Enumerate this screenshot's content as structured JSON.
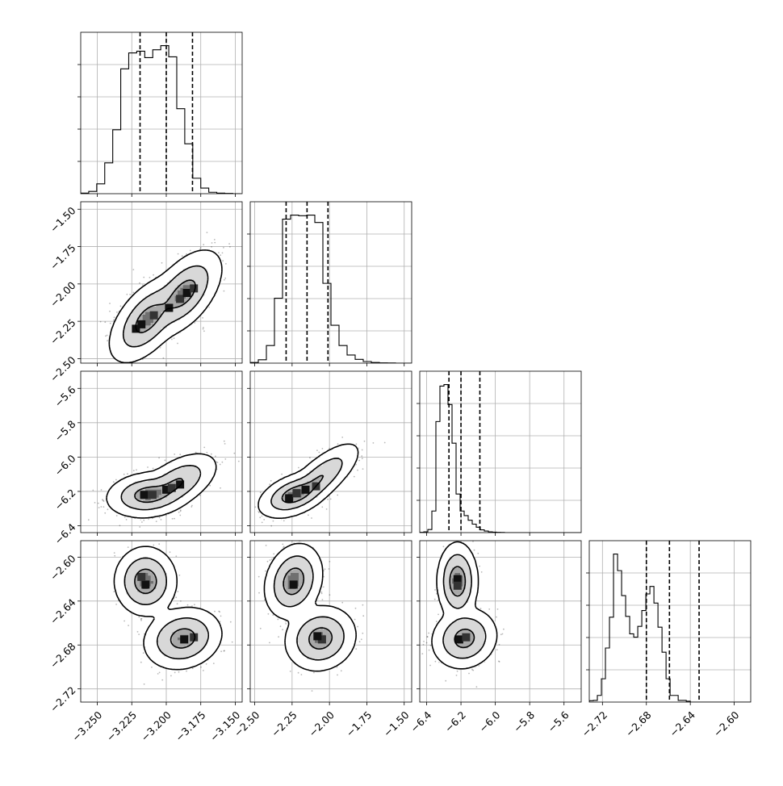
{
  "chart_data": {
    "type": "corner",
    "colors": {
      "ink": "#000000",
      "grid": "#b0b0b0",
      "background": "#ffffff"
    },
    "parameters": [
      {
        "index": 0,
        "range": [
          -3.262,
          -3.145
        ],
        "ticks": [
          -3.25,
          -3.225,
          -3.2,
          -3.175,
          -3.15
        ],
        "tick_labels": [
          "−3.250",
          "−3.225",
          "−3.200",
          "−3.175",
          "−3.150"
        ],
        "quantiles": [
          -3.219,
          -3.2,
          -3.181
        ],
        "histogram": {
          "edges_start": -3.262,
          "bin_width": 0.0058,
          "counts": [
            2,
            8,
            35,
            110,
            228,
            445,
            502,
            508,
            485,
            513,
            528,
            488,
            303,
            178,
            55,
            20,
            5,
            2,
            1,
            0
          ]
        }
      },
      {
        "index": 1,
        "range": [
          -2.53,
          -1.45
        ],
        "ticks": [
          -2.5,
          -2.25,
          -2.0,
          -1.75,
          -1.5
        ],
        "tick_labels": [
          "−2.50",
          "−2.25",
          "−2.00",
          "−1.75",
          "−1.50"
        ],
        "quantiles": [
          -2.29,
          -2.15,
          -2.01
        ],
        "histogram": {
          "edges_start": -2.53,
          "bin_width": 0.054,
          "counts": [
            5,
            25,
            130,
            480,
            1065,
            1095,
            1090,
            1095,
            1040,
            590,
            280,
            130,
            60,
            28,
            12,
            5,
            2,
            1,
            0,
            0
          ]
        }
      },
      {
        "index": 2,
        "range": [
          -6.44,
          -5.5
        ],
        "ticks": [
          -6.4,
          -6.2,
          -6.0,
          -5.8,
          -5.6
        ],
        "tick_labels": [
          "−6.4",
          "−6.2",
          "−6.0",
          "−5.8",
          "−5.6"
        ],
        "quantiles": [
          -6.27,
          -6.2,
          -6.09
        ],
        "histogram": {
          "edges_start": -6.44,
          "bin_width": 0.0235,
          "counts": [
            2,
            5,
            20,
            140,
            720,
            950,
            960,
            830,
            580,
            250,
            140,
            110,
            80,
            55,
            35,
            18,
            10,
            5,
            3,
            2,
            1,
            0,
            0,
            0,
            0,
            0,
            0,
            0,
            0,
            0,
            0,
            0,
            0,
            0,
            0,
            0,
            0,
            0,
            0,
            0
          ]
        }
      },
      {
        "index": 3,
        "range": [
          -2.732,
          -2.585
        ],
        "ticks": [
          -2.72,
          -2.68,
          -2.64,
          -2.6
        ],
        "tick_labels": [
          "−2.72",
          "−2.68",
          "−2.64",
          "−2.60"
        ],
        "quantiles": [
          -2.68,
          -2.659,
          -2.632
        ],
        "histogram": {
          "edges_start": -2.732,
          "bin_width": 0.00368,
          "counts": [
            8,
            10,
            40,
            140,
            325,
            510,
            890,
            790,
            640,
            515,
            410,
            390,
            455,
            550,
            650,
            695,
            595,
            450,
            300,
            140,
            40,
            40,
            10,
            10,
            5,
            0,
            0,
            0,
            0,
            0,
            0,
            0,
            0,
            0,
            0,
            0,
            0,
            0,
            0,
            0
          ]
        }
      }
    ],
    "pairs": [
      {
        "x": 0,
        "y": 1,
        "modes": [
          {
            "mean": [
              -3.214,
              -2.24
            ],
            "sd": [
              0.0095,
              0.1
            ],
            "rho": 0.55,
            "weight": 0.5
          },
          {
            "mean": [
              -3.187,
              -2.06
            ],
            "sd": [
              0.0095,
              0.1
            ],
            "rho": 0.55,
            "weight": 0.5
          }
        ],
        "dense_cells": [
          [
            -3.218,
            -2.27
          ],
          [
            -3.209,
            -2.21
          ],
          [
            -3.198,
            -2.16
          ],
          [
            -3.19,
            -2.1
          ],
          [
            -3.185,
            -2.06
          ],
          [
            -3.18,
            -2.03
          ],
          [
            -3.222,
            -2.3
          ]
        ]
      },
      {
        "x": 0,
        "y": 2,
        "modes": [
          {
            "mean": [
              -3.214,
              -6.22
            ],
            "sd": [
              0.01,
              0.045
            ],
            "rho": 0.15,
            "weight": 0.55
          },
          {
            "mean": [
              -3.192,
              -6.15
            ],
            "sd": [
              0.01,
              0.06
            ],
            "rho": 0.55,
            "weight": 0.45
          }
        ],
        "dense_cells": [
          [
            -3.216,
            -6.22
          ],
          [
            -3.21,
            -6.22
          ],
          [
            -3.2,
            -6.19
          ],
          [
            -3.196,
            -6.18
          ],
          [
            -3.19,
            -6.16
          ]
        ]
      },
      {
        "x": 1,
        "y": 2,
        "modes": [
          {
            "mean": [
              -2.24,
              -6.22
            ],
            "sd": [
              0.08,
              0.045
            ],
            "rho": 0.45,
            "weight": 0.55
          },
          {
            "mean": [
              -2.06,
              -6.12
            ],
            "sd": [
              0.09,
              0.07
            ],
            "rho": 0.75,
            "weight": 0.45
          }
        ],
        "dense_cells": [
          [
            -2.27,
            -6.24
          ],
          [
            -2.22,
            -6.21
          ],
          [
            -2.16,
            -6.19
          ],
          [
            -2.09,
            -6.17
          ]
        ]
      },
      {
        "x": 0,
        "y": 3,
        "modes": [
          {
            "mean": [
              -3.215,
              -2.622
            ],
            "sd": [
              0.0075,
              0.0105
            ],
            "rho": 0.0,
            "weight": 0.5
          },
          {
            "mean": [
              -3.188,
              -2.674
            ],
            "sd": [
              0.0095,
              0.0095
            ],
            "rho": 0.15,
            "weight": 0.5
          }
        ],
        "dense_cells": [
          [
            -3.215,
            -2.625
          ],
          [
            -3.218,
            -2.618
          ],
          [
            -3.187,
            -2.675
          ],
          [
            -3.18,
            -2.673
          ]
        ]
      },
      {
        "x": 1,
        "y": 3,
        "modes": [
          {
            "mean": [
              -2.24,
              -2.622
            ],
            "sd": [
              0.065,
              0.0115
            ],
            "rho": 0.2,
            "weight": 0.5
          },
          {
            "mean": [
              -2.06,
              -2.674
            ],
            "sd": [
              0.08,
              0.01
            ],
            "rho": 0.1,
            "weight": 0.5
          }
        ],
        "dense_cells": [
          [
            -2.24,
            -2.625
          ],
          [
            -2.05,
            -2.675
          ],
          [
            -2.08,
            -2.672
          ]
        ]
      },
      {
        "x": 2,
        "y": 3,
        "modes": [
          {
            "mean": [
              -6.22,
              -2.622
            ],
            "sd": [
              0.04,
              0.012
            ],
            "rho": 0.0,
            "weight": 0.5
          },
          {
            "mean": [
              -6.18,
              -2.674
            ],
            "sd": [
              0.065,
              0.0095
            ],
            "rho": 0.1,
            "weight": 0.5
          }
        ],
        "dense_cells": [
          [
            -6.22,
            -2.62
          ],
          [
            -6.22,
            -2.626
          ],
          [
            -6.21,
            -2.675
          ],
          [
            -6.17,
            -2.673
          ]
        ]
      }
    ],
    "grid": true,
    "contour_levels": [
      0.39,
      0.86,
      0.99
    ]
  }
}
